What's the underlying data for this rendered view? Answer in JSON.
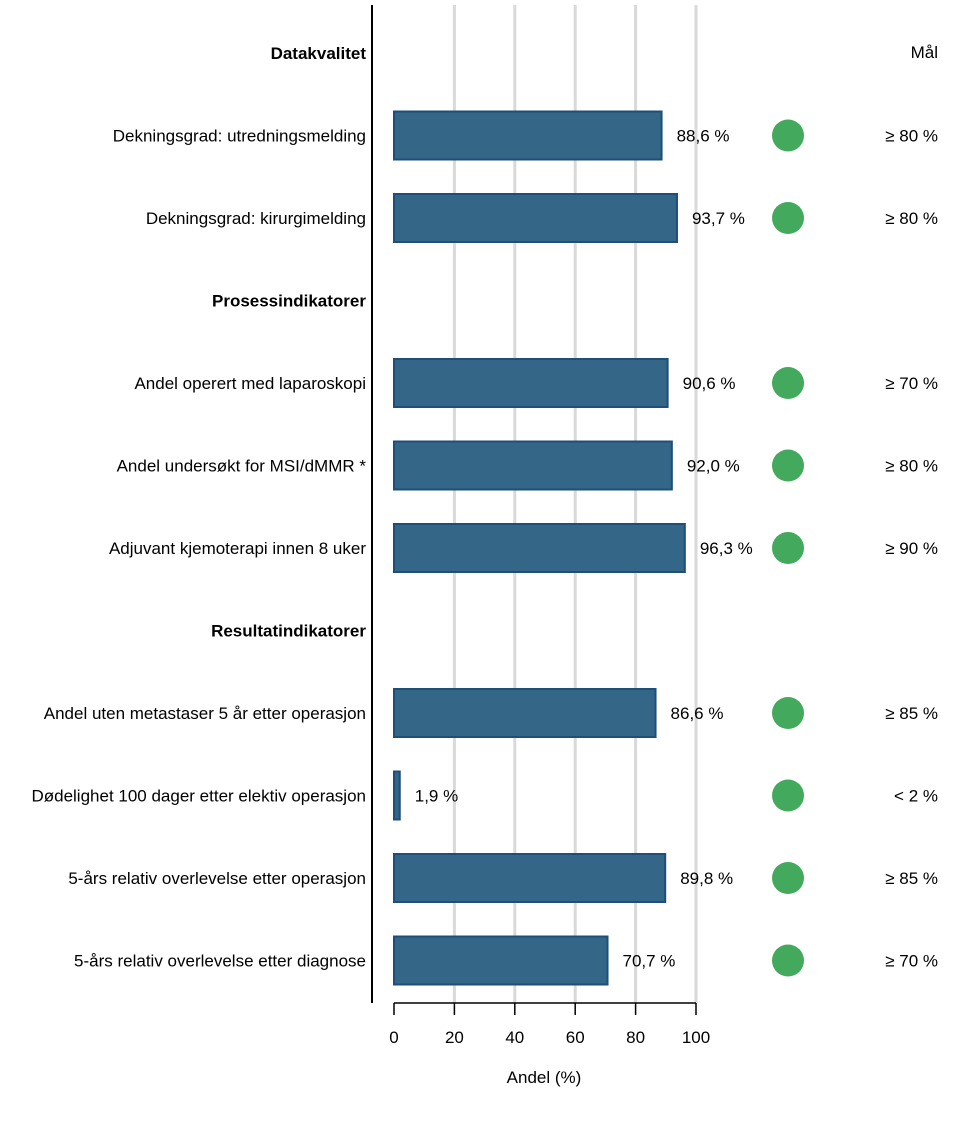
{
  "chart_data": {
    "type": "bar",
    "orientation": "horizontal",
    "xlabel": "Andel (%)",
    "xlim": [
      0,
      100
    ],
    "x_ticks": [
      0,
      20,
      40,
      60,
      80,
      100
    ],
    "grid": true,
    "goal_header": "Mål",
    "colors": {
      "bar": "#336687",
      "bar_edge": "#1f4e79",
      "status_ok": "#43a95d",
      "grid": "#d9d9d9"
    },
    "rows": [
      {
        "type": "header",
        "label": "Datakvalitet"
      },
      {
        "type": "bar",
        "label": "Dekningsgrad: utredningsmelding",
        "value": 88.6,
        "value_label": "88,6 %",
        "status": "green",
        "goal": "≥ 80 %"
      },
      {
        "type": "bar",
        "label": "Dekningsgrad: kirurgimelding",
        "value": 93.7,
        "value_label": "93,7 %",
        "status": "green",
        "goal": "≥ 80 %"
      },
      {
        "type": "header",
        "label": "Prosessindikatorer"
      },
      {
        "type": "bar",
        "label": "Andel operert med laparoskopi",
        "value": 90.6,
        "value_label": "90,6 %",
        "status": "green",
        "goal": "≥ 70 %"
      },
      {
        "type": "bar",
        "label": "Andel undersøkt for MSI/dMMR *",
        "value": 92.0,
        "value_label": "92,0 %",
        "status": "green",
        "goal": "≥ 80 %"
      },
      {
        "type": "bar",
        "label": "Adjuvant kjemoterapi innen 8 uker",
        "value": 96.3,
        "value_label": "96,3 %",
        "status": "green",
        "goal": "≥ 90 %"
      },
      {
        "type": "header",
        "label": "Resultatindikatorer"
      },
      {
        "type": "bar",
        "label": "Andel uten metastaser 5 år etter operasjon",
        "value": 86.6,
        "value_label": "86,6 %",
        "status": "green",
        "goal": "≥ 85 %"
      },
      {
        "type": "bar",
        "label": "Dødelighet 100 dager etter elektiv operasjon",
        "value": 1.9,
        "value_label": "1,9 %",
        "status": "green",
        "goal": "< 2 %"
      },
      {
        "type": "bar",
        "label": "5-års relativ overlevelse etter operasjon",
        "value": 89.8,
        "value_label": "89,8 %",
        "status": "green",
        "goal": "≥ 85 %"
      },
      {
        "type": "bar",
        "label": "5-års relativ overlevelse etter diagnose",
        "value": 70.7,
        "value_label": "70,7 %",
        "status": "green",
        "goal": "≥ 70 %"
      }
    ]
  }
}
